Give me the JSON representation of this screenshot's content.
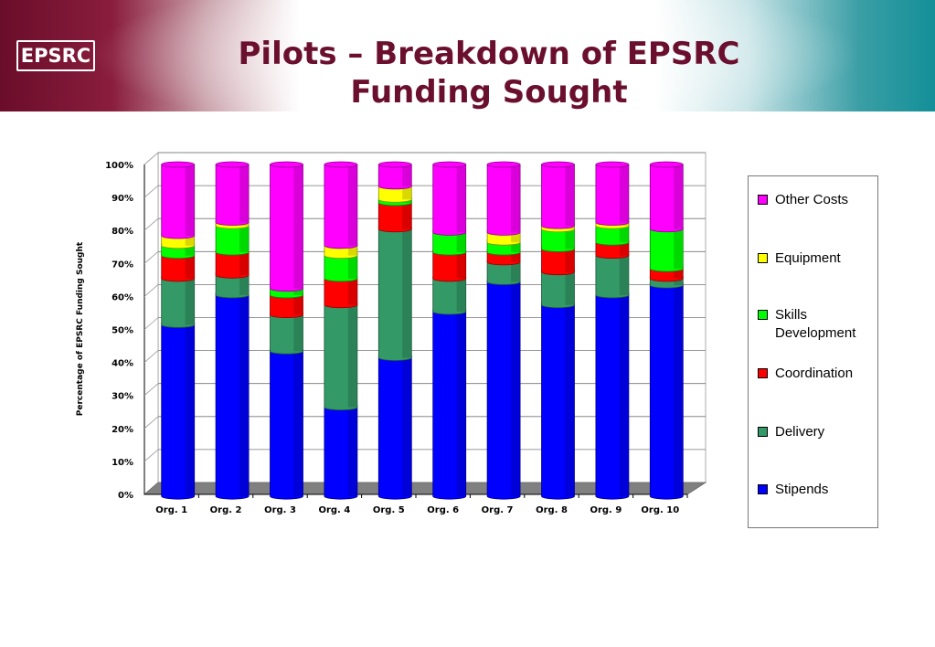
{
  "header": {
    "logo_text": "EPSRC",
    "title": "Pilots – Breakdown of EPSRC Funding Sought"
  },
  "chart_data": {
    "type": "bar",
    "stacked": true,
    "percent": true,
    "ylabel": "Percentage of EPSRC Funding Sought",
    "xlabel": "",
    "ylim": [
      0,
      100
    ],
    "yticks": [
      "0%",
      "10%",
      "20%",
      "30%",
      "40%",
      "50%",
      "60%",
      "70%",
      "80%",
      "90%",
      "100%"
    ],
    "grid": true,
    "legend_position": "right",
    "categories": [
      "Org. 1",
      "Org. 2",
      "Org. 3",
      "Org. 4",
      "Org. 5",
      "Org. 6",
      "Org. 7",
      "Org. 8",
      "Org. 9",
      "Org. 10"
    ],
    "series": [
      {
        "name": "Stipends",
        "color": "#0000ff",
        "values": [
          52,
          61,
          44,
          27,
          42,
          56,
          65,
          58,
          61,
          64
        ]
      },
      {
        "name": "Delivery",
        "color": "#339966",
        "values": [
          14,
          6,
          11,
          31,
          39,
          10,
          6,
          10,
          12,
          2
        ]
      },
      {
        "name": "Coordination",
        "color": "#ff0000",
        "values": [
          7,
          7,
          6,
          8,
          8,
          8,
          3,
          7,
          4,
          3
        ]
      },
      {
        "name": "Skills Development",
        "color": "#00ff00",
        "values": [
          3,
          8,
          2,
          7,
          1,
          6,
          3,
          6,
          5,
          12
        ]
      },
      {
        "name": "Equipment",
        "color": "#ffff00",
        "values": [
          3,
          1,
          0,
          3,
          4,
          0,
          3,
          1,
          1,
          0
        ]
      },
      {
        "name": "Other Costs",
        "color": "#ff00ff",
        "values": [
          21,
          17,
          37,
          24,
          6,
          20,
          20,
          18,
          17,
          19
        ]
      }
    ]
  },
  "legend": {
    "items": [
      {
        "label": "Other Costs",
        "color": "#ff00ff"
      },
      {
        "label": "Equipment",
        "color": "#ffff00"
      },
      {
        "label": "Skills Development",
        "color": "#00ff00"
      },
      {
        "label": "Coordination",
        "color": "#ff0000"
      },
      {
        "label": "Delivery",
        "color": "#339966"
      },
      {
        "label": "Stipends",
        "color": "#0000ff"
      }
    ]
  }
}
